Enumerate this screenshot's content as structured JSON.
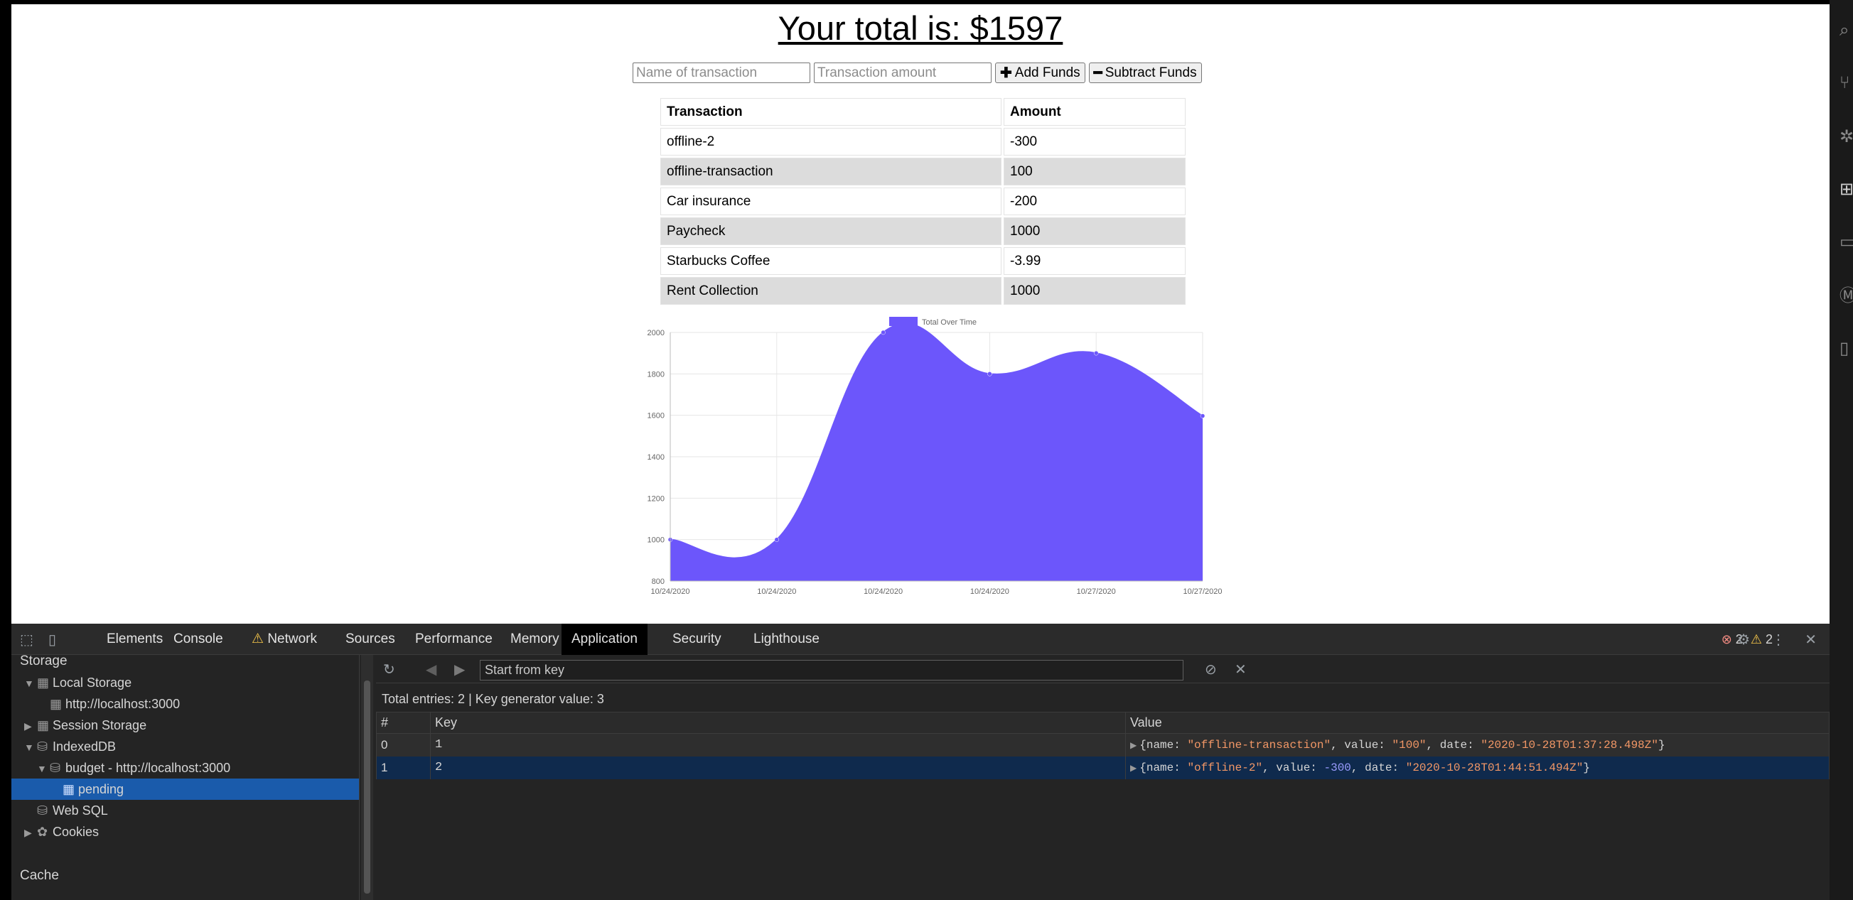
{
  "app": {
    "total_label": "Your total is: $1597"
  },
  "form": {
    "name_placeholder": "Name of transaction",
    "amount_placeholder": "Transaction amount",
    "add_icon": "plus-icon",
    "add_label": "Add Funds",
    "subtract_icon": "minus-icon",
    "subtract_label": "Subtract Funds"
  },
  "transactions": {
    "headers": [
      "Transaction",
      "Amount"
    ],
    "rows": [
      {
        "name": "offline-2",
        "amount": "-300"
      },
      {
        "name": "offline-transaction",
        "amount": "100"
      },
      {
        "name": "Car insurance",
        "amount": "-200"
      },
      {
        "name": "Paycheck",
        "amount": "1000"
      },
      {
        "name": "Starbucks Coffee",
        "amount": "-3.99"
      },
      {
        "name": "Rent Collection",
        "amount": "1000"
      }
    ]
  },
  "chart_data": {
    "type": "area",
    "title": "",
    "xlabel": "",
    "ylabel": "",
    "legend": {
      "label": "Total Over Time",
      "position": "top"
    },
    "x": [
      "10/24/2020",
      "10/24/2020",
      "10/24/2020",
      "10/24/2020",
      "10/27/2020",
      "10/27/2020"
    ],
    "values": [
      1000,
      1000,
      2000,
      1800,
      1900,
      1597
    ],
    "ylim": [
      800,
      2000
    ],
    "yticks": [
      800,
      1000,
      1200,
      1400,
      1600,
      1800,
      2000
    ],
    "color": "#6c56fb",
    "grid": true
  },
  "devtools": {
    "tabs": [
      "Elements",
      "Console",
      "Network",
      "Sources",
      "Performance",
      "Memory",
      "Application",
      "Security",
      "Lighthouse"
    ],
    "active_tab": "Application",
    "errors_count": "2",
    "warnings_count": "2",
    "sidebar": {
      "storage_heading": "Storage",
      "local_storage": "Local Storage",
      "local_storage_origin": "http://localhost:3000",
      "session_storage": "Session Storage",
      "indexeddb": "IndexedDB",
      "db_name": "budget - http://localhost:3000",
      "store_name": "pending",
      "web_sql": "Web SQL",
      "cookies": "Cookies",
      "cache_heading": "Cache"
    },
    "idb": {
      "key_placeholder": "Start from key",
      "entries_info": "Total entries: 2  |  Key generator value: 3",
      "columns": [
        "#",
        "Key",
        "Value"
      ],
      "rows": [
        {
          "index": "0",
          "key": "1",
          "value_name": "\"offline-transaction\"",
          "value_value": "\"100\"",
          "value_value_kind": "string",
          "value_date": "\"2020-10-28T01:37:28.498Z\""
        },
        {
          "index": "1",
          "key": "2",
          "value_name": "\"offline-2\"",
          "value_value": "-300",
          "value_value_kind": "number",
          "value_date": "\"2020-10-28T01:44:51.494Z\""
        }
      ]
    }
  }
}
